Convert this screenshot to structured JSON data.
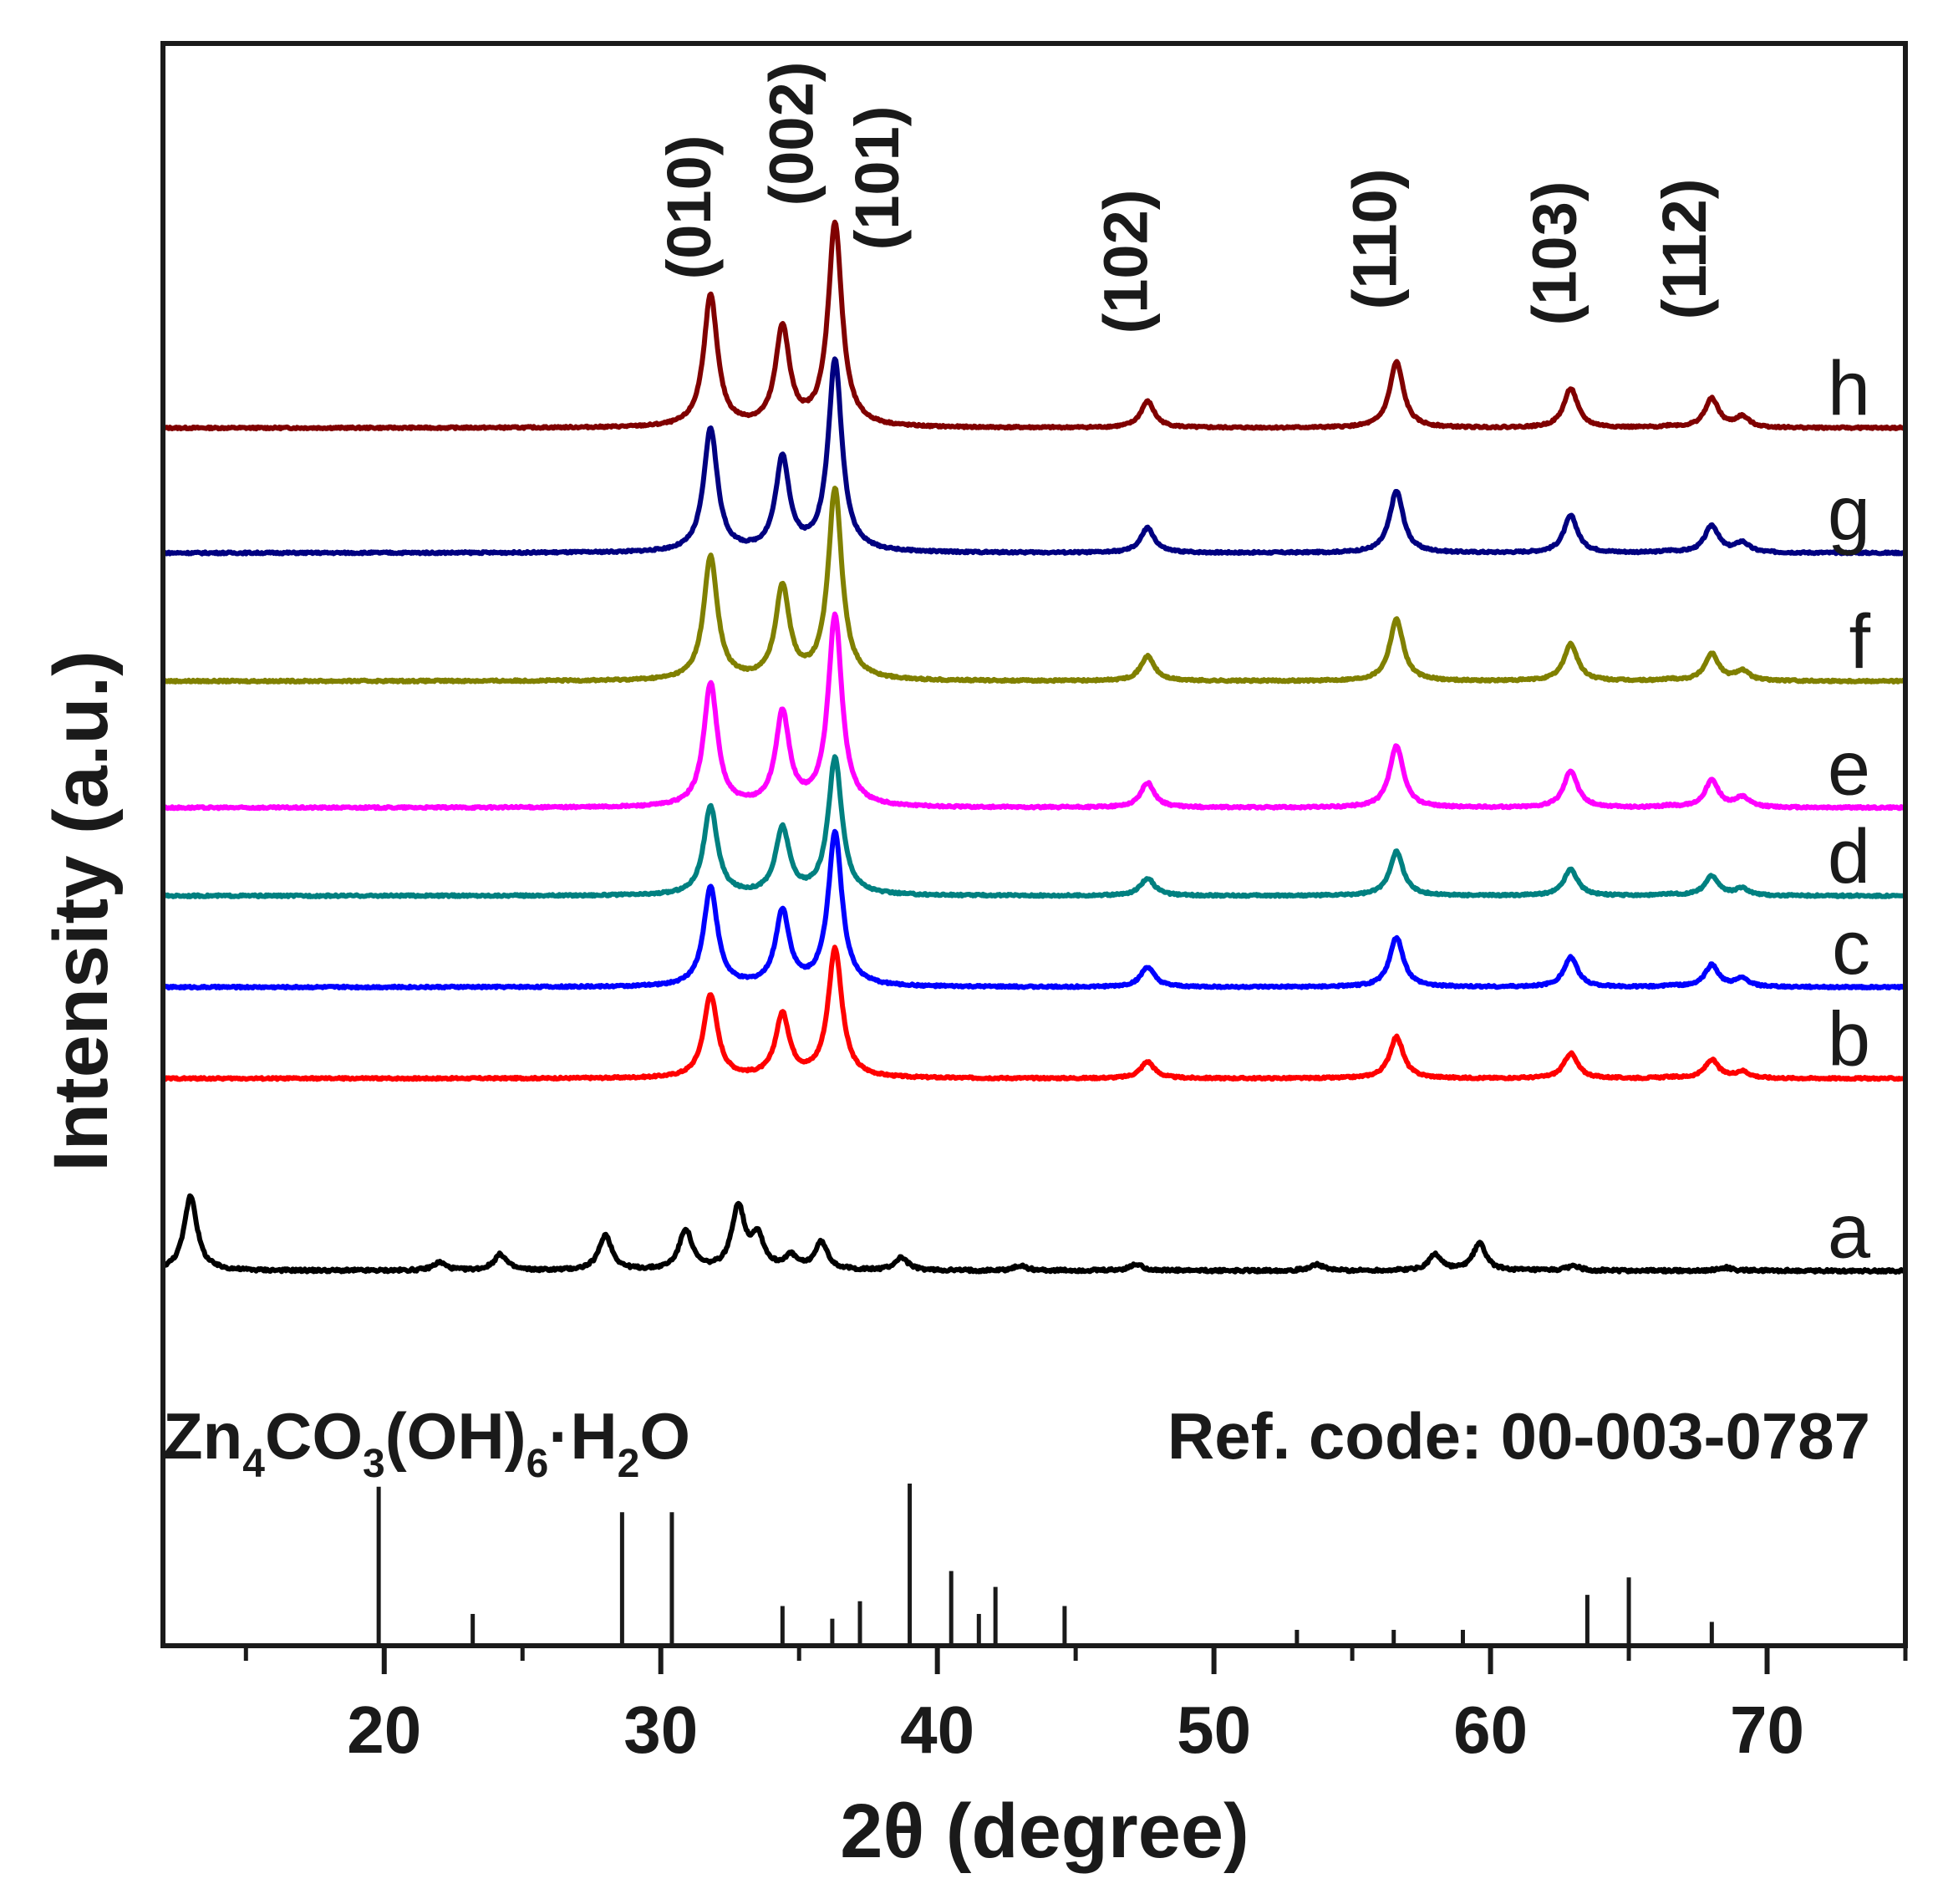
{
  "chart_data": {
    "type": "line",
    "title": "",
    "xlabel": "2θ (degree)",
    "ylabel": "Intensity (a.u.)",
    "xlim": [
      12,
      75
    ],
    "xticks": [
      20,
      30,
      40,
      50,
      60,
      70
    ],
    "minor_xticks": [
      15,
      25,
      35,
      45,
      55,
      65,
      75
    ],
    "grid": false,
    "legend": "series letters at right end of each trace",
    "zno_peaks": [
      {
        "label": "(010)",
        "x": 31.8,
        "height": 1.0
      },
      {
        "label": "(002)",
        "x": 34.4,
        "height": 0.75
      },
      {
        "label": "(101)",
        "x": 36.3,
        "height": 1.55
      },
      {
        "label": "(102)",
        "x": 47.6,
        "height": 0.2
      },
      {
        "label": "(110)",
        "x": 56.6,
        "height": 0.5
      },
      {
        "label": "(103)",
        "x": 62.9,
        "height": 0.3
      },
      {
        "label": "(112)",
        "x": 68.0,
        "height": 0.22
      }
    ],
    "series": [
      {
        "name": "h",
        "color": "#800000",
        "baseline": 0.76,
        "scale": 0.082
      },
      {
        "name": "g",
        "color": "#000080",
        "baseline": 0.682,
        "scale": 0.077
      },
      {
        "name": "f",
        "color": "#808000",
        "baseline": 0.602,
        "scale": 0.077
      },
      {
        "name": "e",
        "color": "#ff00ff",
        "baseline": 0.523,
        "scale": 0.077
      },
      {
        "name": "d",
        "color": "#008080",
        "baseline": 0.468,
        "scale": 0.055
      },
      {
        "name": "c",
        "color": "#0000ff",
        "baseline": 0.411,
        "scale": 0.062
      },
      {
        "name": "b",
        "color": "#ff0000",
        "baseline": 0.354,
        "scale": 0.052
      },
      {
        "name": "a",
        "color": "#000000",
        "baseline": 0.234,
        "peaks": [
          {
            "x": 13.0,
            "h": 0.047
          },
          {
            "x": 22.0,
            "h": 0.005
          },
          {
            "x": 24.2,
            "h": 0.01
          },
          {
            "x": 28.0,
            "h": 0.022
          },
          {
            "x": 30.9,
            "h": 0.025
          },
          {
            "x": 32.8,
            "h": 0.039
          },
          {
            "x": 33.5,
            "h": 0.02
          },
          {
            "x": 34.7,
            "h": 0.008
          },
          {
            "x": 35.8,
            "h": 0.017
          },
          {
            "x": 38.7,
            "h": 0.008
          },
          {
            "x": 43.0,
            "h": 0.003
          },
          {
            "x": 47.2,
            "h": 0.004
          },
          {
            "x": 53.7,
            "h": 0.004
          },
          {
            "x": 58.0,
            "h": 0.01
          },
          {
            "x": 59.6,
            "h": 0.017
          },
          {
            "x": 63.0,
            "h": 0.003
          },
          {
            "x": 68.5,
            "h": 0.002
          }
        ]
      }
    ],
    "reference": {
      "compound_parts": [
        {
          "text": "Zn",
          "sub": false
        },
        {
          "text": "4",
          "sub": true
        },
        {
          "text": "CO",
          "sub": false
        },
        {
          "text": "3",
          "sub": true
        },
        {
          "text": "(OH)",
          "sub": false
        },
        {
          "text": "6",
          "sub": true
        },
        {
          "text": "·H",
          "sub": false
        },
        {
          "text": "2",
          "sub": true
        },
        {
          "text": "O",
          "sub": false
        }
      ],
      "code_label": "Ref. code: 00-003-0787",
      "sticks": [
        {
          "x": 19.8,
          "h": 1.0
        },
        {
          "x": 23.2,
          "h": 0.2
        },
        {
          "x": 28.6,
          "h": 0.84
        },
        {
          "x": 30.4,
          "h": 0.84
        },
        {
          "x": 34.4,
          "h": 0.25
        },
        {
          "x": 36.2,
          "h": 0.17
        },
        {
          "x": 37.2,
          "h": 0.28
        },
        {
          "x": 39.0,
          "h": 1.02
        },
        {
          "x": 40.5,
          "h": 0.47
        },
        {
          "x": 41.5,
          "h": 0.2
        },
        {
          "x": 42.1,
          "h": 0.37
        },
        {
          "x": 44.6,
          "h": 0.25
        },
        {
          "x": 53.0,
          "h": 0.1
        },
        {
          "x": 56.5,
          "h": 0.1
        },
        {
          "x": 59.0,
          "h": 0.1
        },
        {
          "x": 63.5,
          "h": 0.32
        },
        {
          "x": 65.0,
          "h": 0.43
        },
        {
          "x": 68.0,
          "h": 0.15
        }
      ]
    }
  }
}
